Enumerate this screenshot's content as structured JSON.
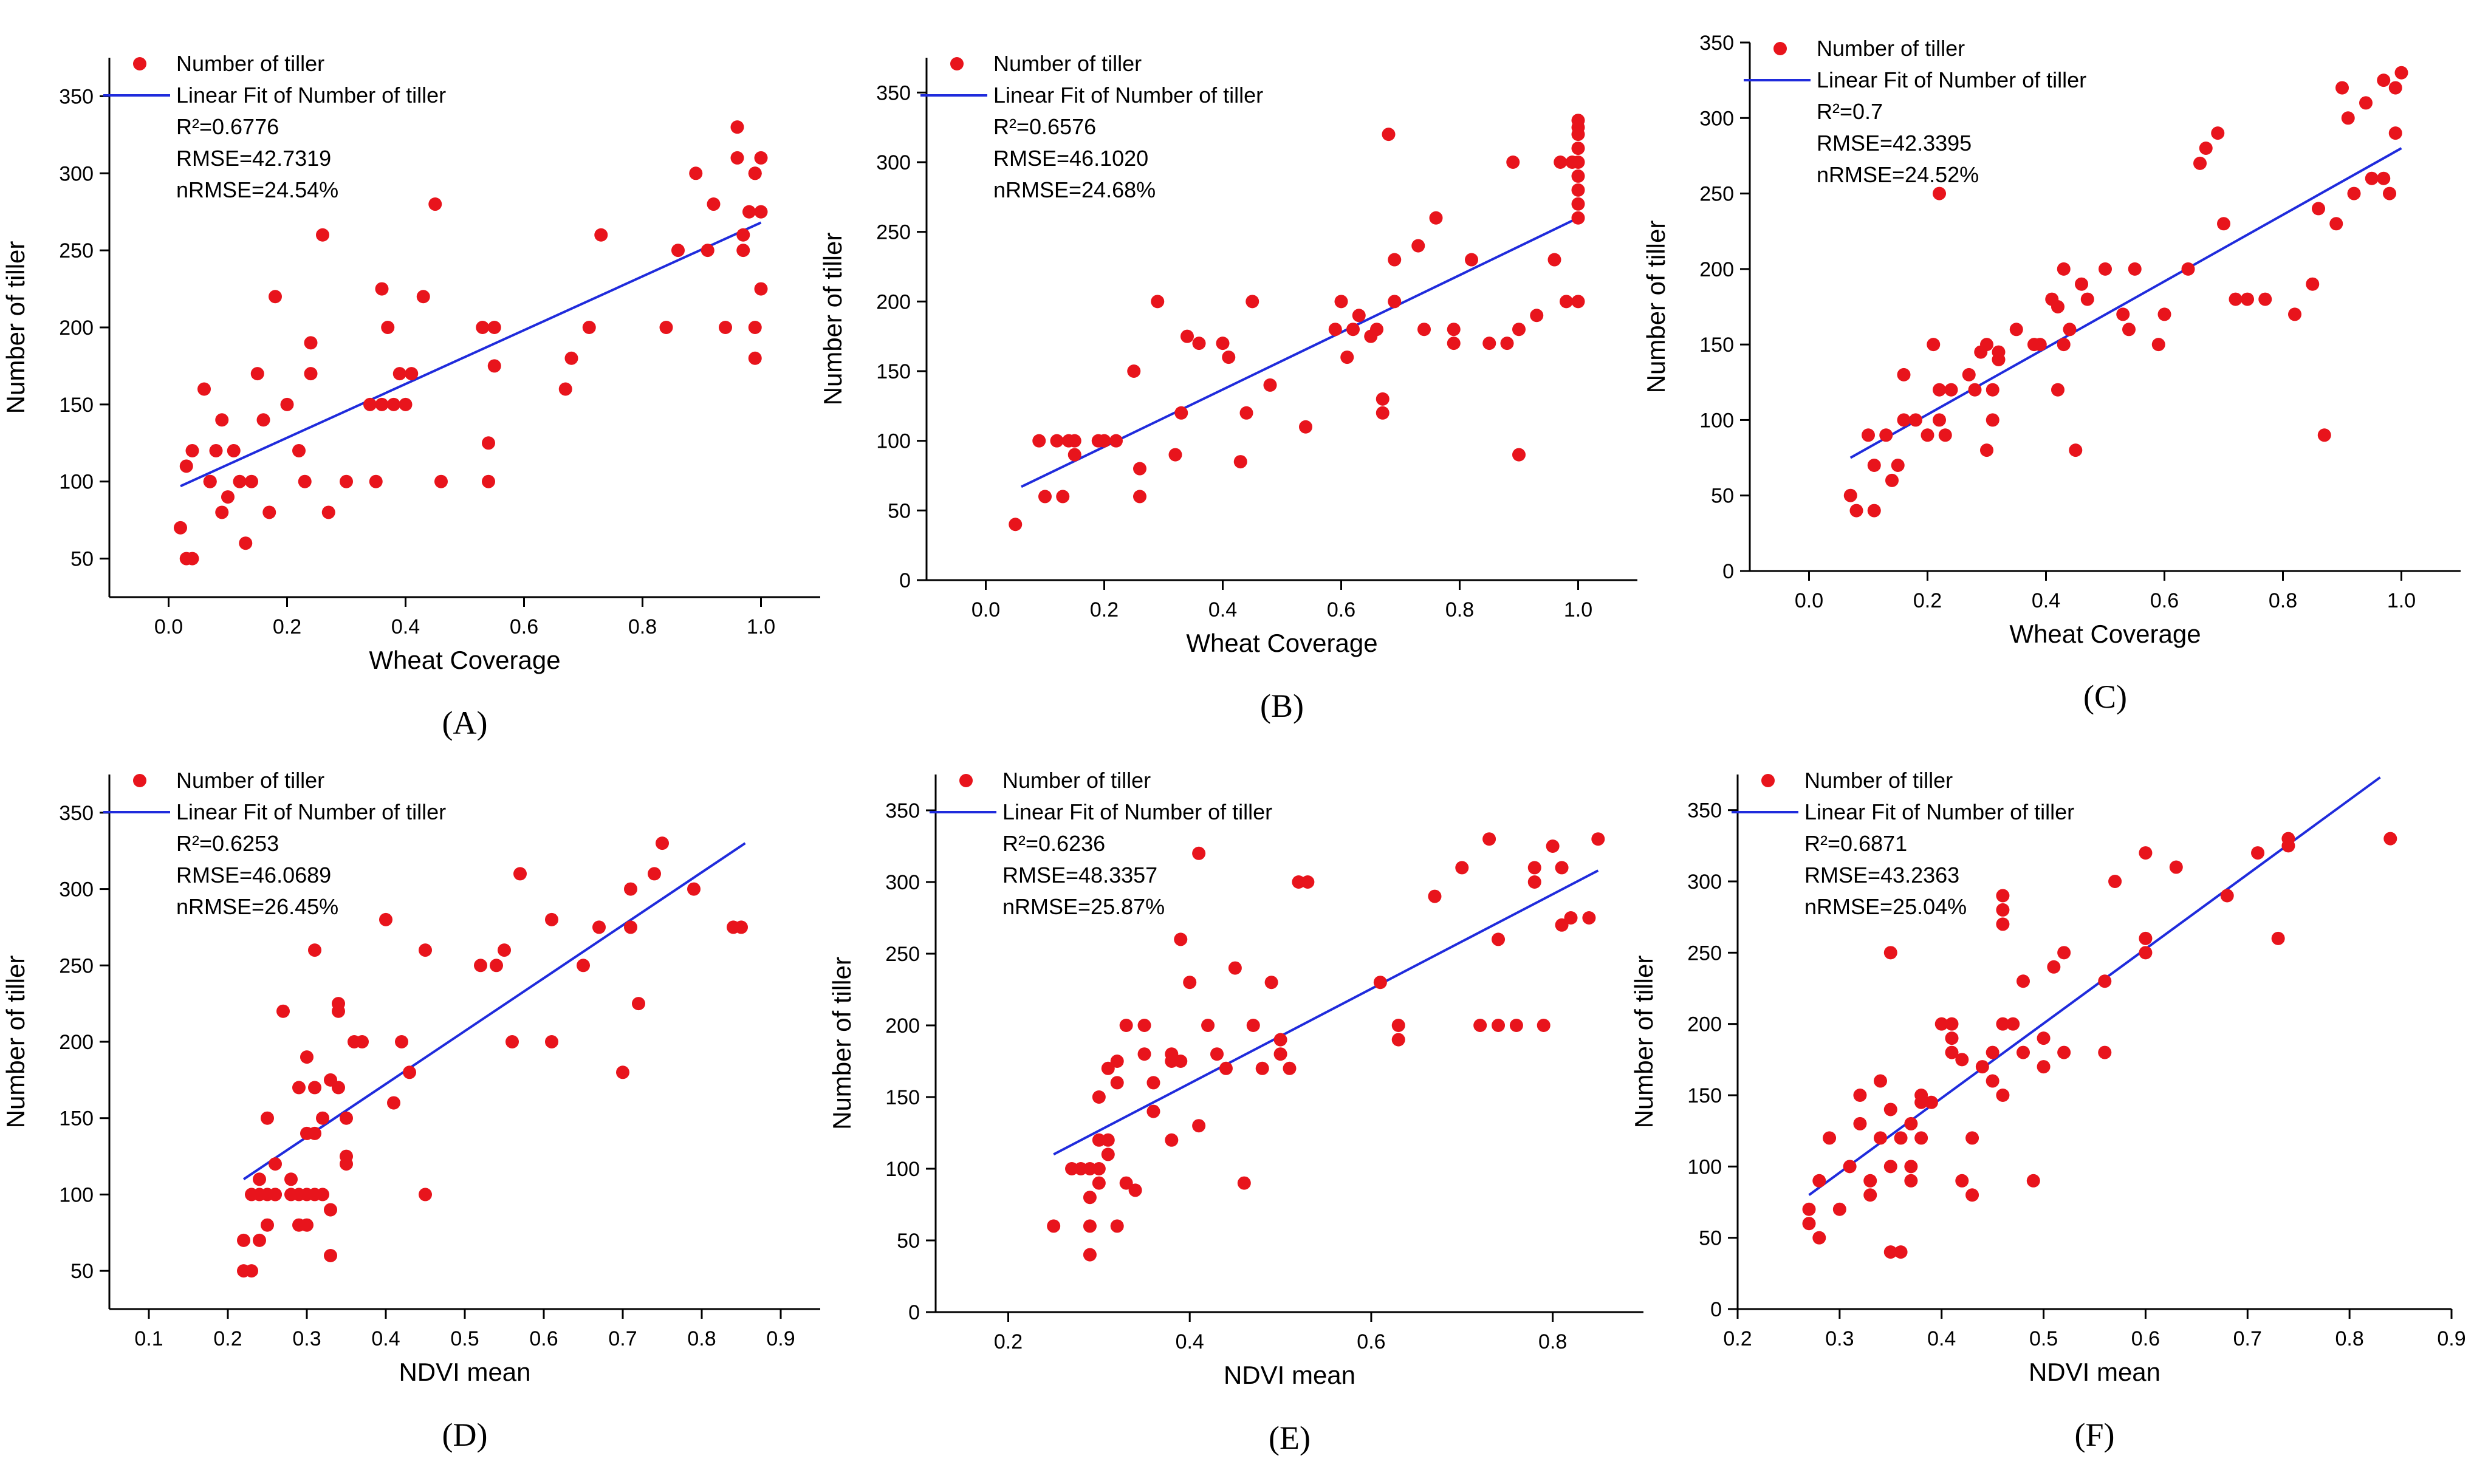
{
  "figure": {
    "series_color": "#e8141c",
    "fit_color": "#1f2bdc",
    "axis_color": "#000000"
  },
  "chart_data": [
    {
      "type": "scatter",
      "panel_label": "(A)",
      "xlabel": "Wheat Coverage",
      "ylabel": "Number of tiller",
      "xlim": [
        -0.1,
        1.1
      ],
      "ylim": [
        25,
        375
      ],
      "xticks": [
        0.0,
        0.2,
        0.4,
        0.6,
        0.8,
        1.0
      ],
      "xtick_labels": [
        "0.0",
        "0.2",
        "0.4",
        "0.6",
        "0.8",
        "1.0"
      ],
      "yticks": [
        50,
        100,
        150,
        200,
        250,
        300,
        350
      ],
      "ytick_labels": [
        "50",
        "100",
        "150",
        "200",
        "250",
        "300",
        "350"
      ],
      "legend": {
        "position": "top-left",
        "scatter_label": "Number of  tiller",
        "line_label": "Linear Fit of Number of tiller"
      },
      "stats": [
        "R²=0.6776",
        "RMSE=42.7319",
        "nRMSE=24.54%"
      ],
      "fit": {
        "x1": 0.02,
        "y1": 97,
        "x2": 1.0,
        "y2": 268
      },
      "x": [
        0.02,
        0.03,
        0.04,
        0.03,
        0.04,
        0.06,
        0.07,
        0.07,
        0.08,
        0.09,
        0.09,
        0.1,
        0.11,
        0.12,
        0.13,
        0.14,
        0.15,
        0.16,
        0.17,
        0.18,
        0.2,
        0.22,
        0.23,
        0.24,
        0.24,
        0.26,
        0.27,
        0.3,
        0.34,
        0.35,
        0.36,
        0.36,
        0.37,
        0.38,
        0.39,
        0.4,
        0.41,
        0.43,
        0.45,
        0.46,
        0.53,
        0.54,
        0.54,
        0.55,
        0.55,
        0.67,
        0.68,
        0.71,
        0.73,
        0.84,
        0.86,
        0.89,
        0.91,
        0.92,
        0.94,
        0.96,
        0.96,
        0.97,
        0.97,
        0.98,
        0.99,
        0.99,
        1.0,
        1.0,
        0.99,
        1.0,
        0.99
      ],
      "y": [
        70,
        50,
        50,
        110,
        120,
        160,
        100,
        100,
        120,
        80,
        140,
        90,
        120,
        100,
        60,
        100,
        170,
        140,
        80,
        220,
        150,
        120,
        100,
        190,
        170,
        260,
        80,
        100,
        150,
        100,
        225,
        150,
        200,
        150,
        170,
        150,
        170,
        220,
        280,
        100,
        200,
        100,
        125,
        175,
        200,
        160,
        180,
        200,
        260,
        200,
        250,
        300,
        250,
        280,
        200,
        330,
        310,
        260,
        250,
        275,
        200,
        300,
        275,
        310,
        180,
        225,
        300
      ]
    },
    {
      "type": "scatter",
      "panel_label": "(B)",
      "xlabel": "Wheat Coverage",
      "ylabel": "Number of tiller",
      "xlim": [
        -0.1,
        1.1
      ],
      "ylim": [
        0,
        375
      ],
      "xticks": [
        0.0,
        0.2,
        0.4,
        0.6,
        0.8,
        1.0
      ],
      "xtick_labels": [
        "0.0",
        "0.2",
        "0.4",
        "0.6",
        "0.8",
        "1.0"
      ],
      "yticks": [
        0,
        50,
        100,
        150,
        200,
        250,
        300,
        350
      ],
      "ytick_labels": [
        "0",
        "50",
        "100",
        "150",
        "200",
        "250",
        "300",
        "350"
      ],
      "legend": {
        "position": "top-left",
        "scatter_label": "Number of  tiller",
        "line_label": "Linear Fit of Number of tiller"
      },
      "stats": [
        "R²=0.6576",
        "RMSE=46.1020",
        "nRMSE=24.68%"
      ],
      "fit": {
        "x1": 0.06,
        "y1": 67,
        "x2": 1.0,
        "y2": 260
      },
      "x": [
        0.05,
        0.09,
        0.1,
        0.12,
        0.13,
        0.14,
        0.15,
        0.15,
        0.19,
        0.2,
        0.22,
        0.25,
        0.26,
        0.26,
        0.29,
        0.32,
        0.33,
        0.34,
        0.36,
        0.4,
        0.41,
        0.43,
        0.44,
        0.45,
        0.48,
        0.54,
        0.59,
        0.6,
        0.61,
        0.62,
        0.63,
        0.65,
        0.66,
        0.67,
        0.67,
        0.68,
        0.69,
        0.69,
        0.73,
        0.74,
        0.76,
        0.79,
        0.79,
        0.82,
        0.85,
        0.88,
        0.89,
        0.9,
        0.9,
        0.93,
        0.96,
        0.97,
        0.98,
        0.99,
        1.0,
        1.0,
        1.0,
        1.0,
        1.0,
        1.0,
        1.0,
        1.0,
        1.0,
        1.0
      ],
      "y": [
        40,
        100,
        60,
        100,
        60,
        100,
        90,
        100,
        100,
        100,
        100,
        150,
        80,
        60,
        200,
        90,
        120,
        175,
        170,
        170,
        160,
        85,
        120,
        200,
        140,
        110,
        180,
        200,
        160,
        180,
        190,
        175,
        180,
        130,
        120,
        320,
        200,
        230,
        240,
        180,
        260,
        170,
        180,
        230,
        170,
        170,
        300,
        180,
        90,
        190,
        230,
        300,
        200,
        300,
        200,
        260,
        270,
        280,
        290,
        300,
        310,
        320,
        325,
        330
      ]
    },
    {
      "type": "scatter",
      "panel_label": "(C)",
      "xlabel": "Wheat Coverage",
      "ylabel": "Number of tiller",
      "xlim": [
        -0.1,
        1.1
      ],
      "ylim": [
        0,
        350
      ],
      "xticks": [
        0.0,
        0.2,
        0.4,
        0.6,
        0.8,
        1.0
      ],
      "xtick_labels": [
        "0.0",
        "0.2",
        "0.4",
        "0.6",
        "0.8",
        "1.0"
      ],
      "yticks": [
        0,
        50,
        100,
        150,
        200,
        250,
        300,
        350
      ],
      "ytick_labels": [
        "0",
        "50",
        "100",
        "150",
        "200",
        "250",
        "300",
        "350"
      ],
      "legend": {
        "position": "top-left",
        "scatter_label": "Number of  tiller",
        "line_label": "Linear Fit of Number of tiller"
      },
      "stats": [
        "R²=0.7",
        "RMSE=42.3395",
        "nRMSE=24.52%"
      ],
      "fit": {
        "x1": 0.07,
        "y1": 75,
        "x2": 1.0,
        "y2": 280
      },
      "x": [
        0.07,
        0.08,
        0.1,
        0.11,
        0.11,
        0.13,
        0.14,
        0.15,
        0.16,
        0.16,
        0.18,
        0.2,
        0.21,
        0.22,
        0.22,
        0.22,
        0.23,
        0.24,
        0.27,
        0.28,
        0.29,
        0.3,
        0.3,
        0.31,
        0.31,
        0.32,
        0.32,
        0.35,
        0.38,
        0.39,
        0.41,
        0.42,
        0.42,
        0.43,
        0.43,
        0.44,
        0.45,
        0.46,
        0.47,
        0.5,
        0.53,
        0.54,
        0.55,
        0.59,
        0.6,
        0.64,
        0.66,
        0.67,
        0.69,
        0.7,
        0.72,
        0.74,
        0.77,
        0.82,
        0.85,
        0.86,
        0.87,
        0.89,
        0.9,
        0.91,
        0.92,
        0.94,
        0.95,
        0.97,
        0.97,
        0.98,
        0.99,
        1.0,
        0.99
      ],
      "y": [
        50,
        40,
        90,
        70,
        40,
        90,
        60,
        70,
        100,
        130,
        100,
        90,
        150,
        120,
        100,
        250,
        90,
        120,
        130,
        120,
        145,
        80,
        150,
        120,
        100,
        145,
        140,
        160,
        150,
        150,
        180,
        175,
        120,
        200,
        150,
        160,
        80,
        190,
        180,
        200,
        170,
        160,
        200,
        150,
        170,
        200,
        270,
        280,
        290,
        230,
        180,
        180,
        180,
        170,
        190,
        240,
        90,
        230,
        320,
        300,
        250,
        310,
        260,
        325,
        260,
        250,
        320,
        330,
        290
      ]
    },
    {
      "type": "scatter",
      "panel_label": "(D)",
      "xlabel": "NDVI mean",
      "ylabel": "Number of tiller",
      "xlim": [
        0.05,
        0.95
      ],
      "ylim": [
        25,
        375
      ],
      "xticks": [
        0.1,
        0.2,
        0.3,
        0.4,
        0.5,
        0.6,
        0.7,
        0.8,
        0.9
      ],
      "xtick_labels": [
        "0.1",
        "0.2",
        "0.3",
        "0.4",
        "0.5",
        "0.6",
        "0.7",
        "0.8",
        "0.9"
      ],
      "yticks": [
        50,
        100,
        150,
        200,
        250,
        300,
        350
      ],
      "ytick_labels": [
        "50",
        "100",
        "150",
        "200",
        "250",
        "300",
        "350"
      ],
      "legend": {
        "position": "top-left",
        "scatter_label": "Number of  tiller",
        "line_label": "Linear Fit of Number of tiller"
      },
      "stats": [
        "R²=0.6253",
        "RMSE=46.0689",
        "nRMSE=26.45%"
      ],
      "fit": {
        "x1": 0.22,
        "y1": 110,
        "x2": 0.855,
        "y2": 330
      },
      "x": [
        0.22,
        0.22,
        0.23,
        0.23,
        0.24,
        0.24,
        0.24,
        0.25,
        0.25,
        0.25,
        0.26,
        0.26,
        0.26,
        0.27,
        0.28,
        0.28,
        0.29,
        0.29,
        0.29,
        0.3,
        0.3,
        0.3,
        0.3,
        0.31,
        0.31,
        0.31,
        0.31,
        0.32,
        0.32,
        0.33,
        0.33,
        0.33,
        0.34,
        0.34,
        0.34,
        0.35,
        0.35,
        0.35,
        0.36,
        0.37,
        0.4,
        0.41,
        0.42,
        0.43,
        0.45,
        0.45,
        0.52,
        0.54,
        0.55,
        0.56,
        0.57,
        0.61,
        0.61,
        0.65,
        0.67,
        0.7,
        0.71,
        0.71,
        0.72,
        0.74,
        0.75,
        0.79,
        0.84,
        0.85
      ],
      "y": [
        50,
        70,
        50,
        100,
        110,
        70,
        100,
        100,
        80,
        150,
        100,
        120,
        100,
        220,
        100,
        110,
        100,
        80,
        170,
        140,
        190,
        100,
        80,
        260,
        170,
        140,
        100,
        150,
        100,
        90,
        60,
        175,
        220,
        225,
        170,
        125,
        150,
        120,
        200,
        200,
        280,
        160,
        200,
        180,
        260,
        100,
        250,
        250,
        260,
        200,
        310,
        200,
        280,
        250,
        275,
        180,
        300,
        275,
        225,
        310,
        330,
        300,
        275,
        275
      ]
    },
    {
      "type": "scatter",
      "panel_label": "(E)",
      "xlabel": "NDVI mean",
      "ylabel": "Number of tiller",
      "xlim": [
        0.12,
        0.9
      ],
      "ylim": [
        0,
        375
      ],
      "xticks": [
        0.2,
        0.4,
        0.6,
        0.8
      ],
      "xtick_labels": [
        "0.2",
        "0.4",
        "0.6",
        "0.8"
      ],
      "yticks": [
        0,
        50,
        100,
        150,
        200,
        250,
        300,
        350
      ],
      "ytick_labels": [
        "0",
        "50",
        "100",
        "150",
        "200",
        "250",
        "300",
        "350"
      ],
      "legend": {
        "position": "top-left",
        "scatter_label": "Number of  tiller",
        "line_label": "Linear Fit of Number of tiller"
      },
      "stats": [
        "R²=0.6236",
        "RMSE=48.3357",
        "nRMSE=25.87%"
      ],
      "fit": {
        "x1": 0.25,
        "y1": 110,
        "x2": 0.85,
        "y2": 308
      },
      "x": [
        0.25,
        0.27,
        0.28,
        0.29,
        0.29,
        0.29,
        0.29,
        0.3,
        0.3,
        0.3,
        0.3,
        0.31,
        0.31,
        0.31,
        0.32,
        0.32,
        0.32,
        0.33,
        0.33,
        0.34,
        0.35,
        0.35,
        0.36,
        0.36,
        0.38,
        0.38,
        0.38,
        0.39,
        0.39,
        0.4,
        0.41,
        0.41,
        0.42,
        0.43,
        0.44,
        0.45,
        0.46,
        0.47,
        0.48,
        0.49,
        0.5,
        0.5,
        0.51,
        0.52,
        0.53,
        0.61,
        0.63,
        0.63,
        0.67,
        0.7,
        0.72,
        0.73,
        0.74,
        0.74,
        0.76,
        0.78,
        0.78,
        0.79,
        0.8,
        0.81,
        0.81,
        0.82,
        0.84,
        0.85
      ],
      "y": [
        60,
        100,
        100,
        40,
        60,
        80,
        100,
        150,
        120,
        90,
        100,
        120,
        170,
        110,
        175,
        160,
        60,
        200,
        90,
        85,
        200,
        180,
        160,
        140,
        175,
        180,
        120,
        260,
        175,
        230,
        320,
        130,
        200,
        180,
        170,
        240,
        90,
        200,
        170,
        230,
        190,
        180,
        170,
        300,
        300,
        230,
        200,
        190,
        290,
        310,
        200,
        330,
        200,
        260,
        200,
        300,
        310,
        200,
        325,
        270,
        310,
        275,
        275,
        330
      ]
    },
    {
      "type": "scatter",
      "panel_label": "(F)",
      "xlabel": "NDVI mean",
      "ylabel": "Number of  tiller",
      "xlim": [
        0.2,
        0.9
      ],
      "ylim": [
        0,
        375
      ],
      "xticks": [
        0.2,
        0.3,
        0.4,
        0.5,
        0.6,
        0.7,
        0.8,
        0.9
      ],
      "xtick_labels": [
        "0.2",
        "0.3",
        "0.4",
        "0.5",
        "0.6",
        "0.7",
        "0.8",
        "0.9"
      ],
      "yticks": [
        0,
        50,
        100,
        150,
        200,
        250,
        300,
        350
      ],
      "ytick_labels": [
        "0",
        "50",
        "100",
        "150",
        "200",
        "250",
        "300",
        "350"
      ],
      "legend": {
        "position": "top-left",
        "scatter_label": "Number of  tiller",
        "line_label": "Linear Fit of Number of tiller"
      },
      "stats": [
        "R²=0.6871",
        "RMSE=43.2363",
        "nRMSE=25.04%"
      ],
      "fit": {
        "x1": 0.27,
        "y1": 80,
        "x2": 0.83,
        "y2": 373
      },
      "x": [
        0.27,
        0.27,
        0.28,
        0.28,
        0.29,
        0.3,
        0.31,
        0.32,
        0.32,
        0.33,
        0.33,
        0.34,
        0.34,
        0.35,
        0.35,
        0.35,
        0.35,
        0.36,
        0.36,
        0.37,
        0.37,
        0.37,
        0.38,
        0.38,
        0.38,
        0.39,
        0.4,
        0.41,
        0.41,
        0.41,
        0.42,
        0.42,
        0.43,
        0.43,
        0.44,
        0.45,
        0.45,
        0.46,
        0.46,
        0.46,
        0.46,
        0.46,
        0.47,
        0.48,
        0.48,
        0.49,
        0.5,
        0.5,
        0.51,
        0.52,
        0.52,
        0.56,
        0.56,
        0.57,
        0.6,
        0.6,
        0.6,
        0.63,
        0.68,
        0.71,
        0.73,
        0.74,
        0.74,
        0.84
      ],
      "y": [
        60,
        70,
        50,
        90,
        120,
        70,
        100,
        130,
        150,
        90,
        80,
        160,
        120,
        100,
        250,
        140,
        40,
        40,
        120,
        130,
        90,
        100,
        145,
        150,
        120,
        145,
        200,
        190,
        180,
        200,
        175,
        90,
        80,
        120,
        170,
        160,
        180,
        290,
        280,
        270,
        200,
        150,
        200,
        180,
        230,
        90,
        170,
        190,
        240,
        250,
        180,
        180,
        230,
        300,
        320,
        250,
        260,
        310,
        290,
        320,
        260,
        325,
        330,
        330
      ]
    }
  ]
}
